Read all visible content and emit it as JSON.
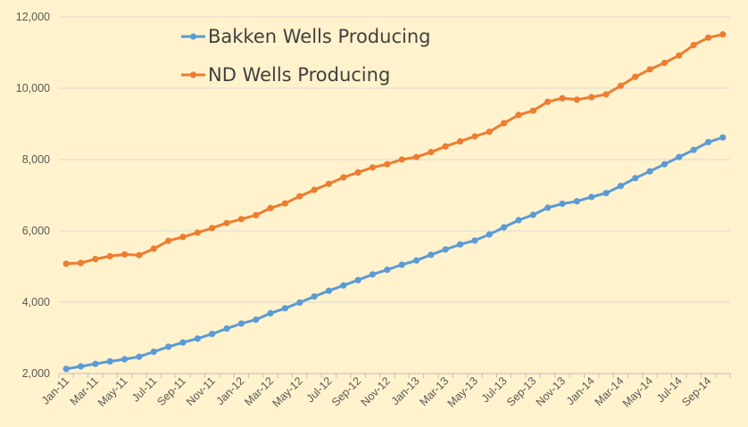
{
  "chart_data": {
    "type": "line",
    "title": "",
    "xlabel": "",
    "ylabel": "",
    "ylim": [
      2000,
      12000
    ],
    "yticks": [
      "2,000",
      "4,000",
      "6,000",
      "8,000",
      "10,000",
      "12,000"
    ],
    "xticks": [
      "Jan-11",
      "Mar-11",
      "May-11",
      "Jul-11",
      "Sep-11",
      "Nov-11",
      "Jan-12",
      "Mar-12",
      "May-12",
      "Jul-12",
      "Sep-12",
      "Nov-12",
      "Jan-13",
      "Mar-13",
      "May-13",
      "Jul-13",
      "Sep-13",
      "Nov-13",
      "Jan-14",
      "Mar-14",
      "May-14",
      "Jul-14",
      "Sep-14"
    ],
    "grid": true,
    "legend_position": "top-left",
    "series": [
      {
        "name": "Bakken Wells Producing",
        "color": "#5B9BD5",
        "values": [
          2130,
          2200,
          2270,
          2340,
          2400,
          2470,
          2610,
          2750,
          2870,
          2980,
          3110,
          3260,
          3400,
          3510,
          3690,
          3830,
          3990,
          4160,
          4320,
          4470,
          4620,
          4780,
          4910,
          5050,
          5170,
          5330,
          5480,
          5620,
          5730,
          5900,
          6100,
          6300,
          6450,
          6650,
          6760,
          6830,
          6950,
          7060,
          7260,
          7480,
          7670,
          7870,
          8070,
          8270,
          8490,
          8620
        ]
      },
      {
        "name": "ND Wells Producing",
        "color": "#ED7D31",
        "values": [
          5080,
          5100,
          5210,
          5290,
          5340,
          5320,
          5500,
          5720,
          5830,
          5950,
          6080,
          6220,
          6330,
          6440,
          6640,
          6770,
          6970,
          7150,
          7320,
          7500,
          7640,
          7780,
          7870,
          8000,
          8070,
          8210,
          8370,
          8510,
          8650,
          8780,
          9020,
          9250,
          9370,
          9620,
          9720,
          9680,
          9750,
          9830,
          10070,
          10320,
          10530,
          10710,
          10920,
          11210,
          11420,
          11510
        ]
      }
    ]
  }
}
